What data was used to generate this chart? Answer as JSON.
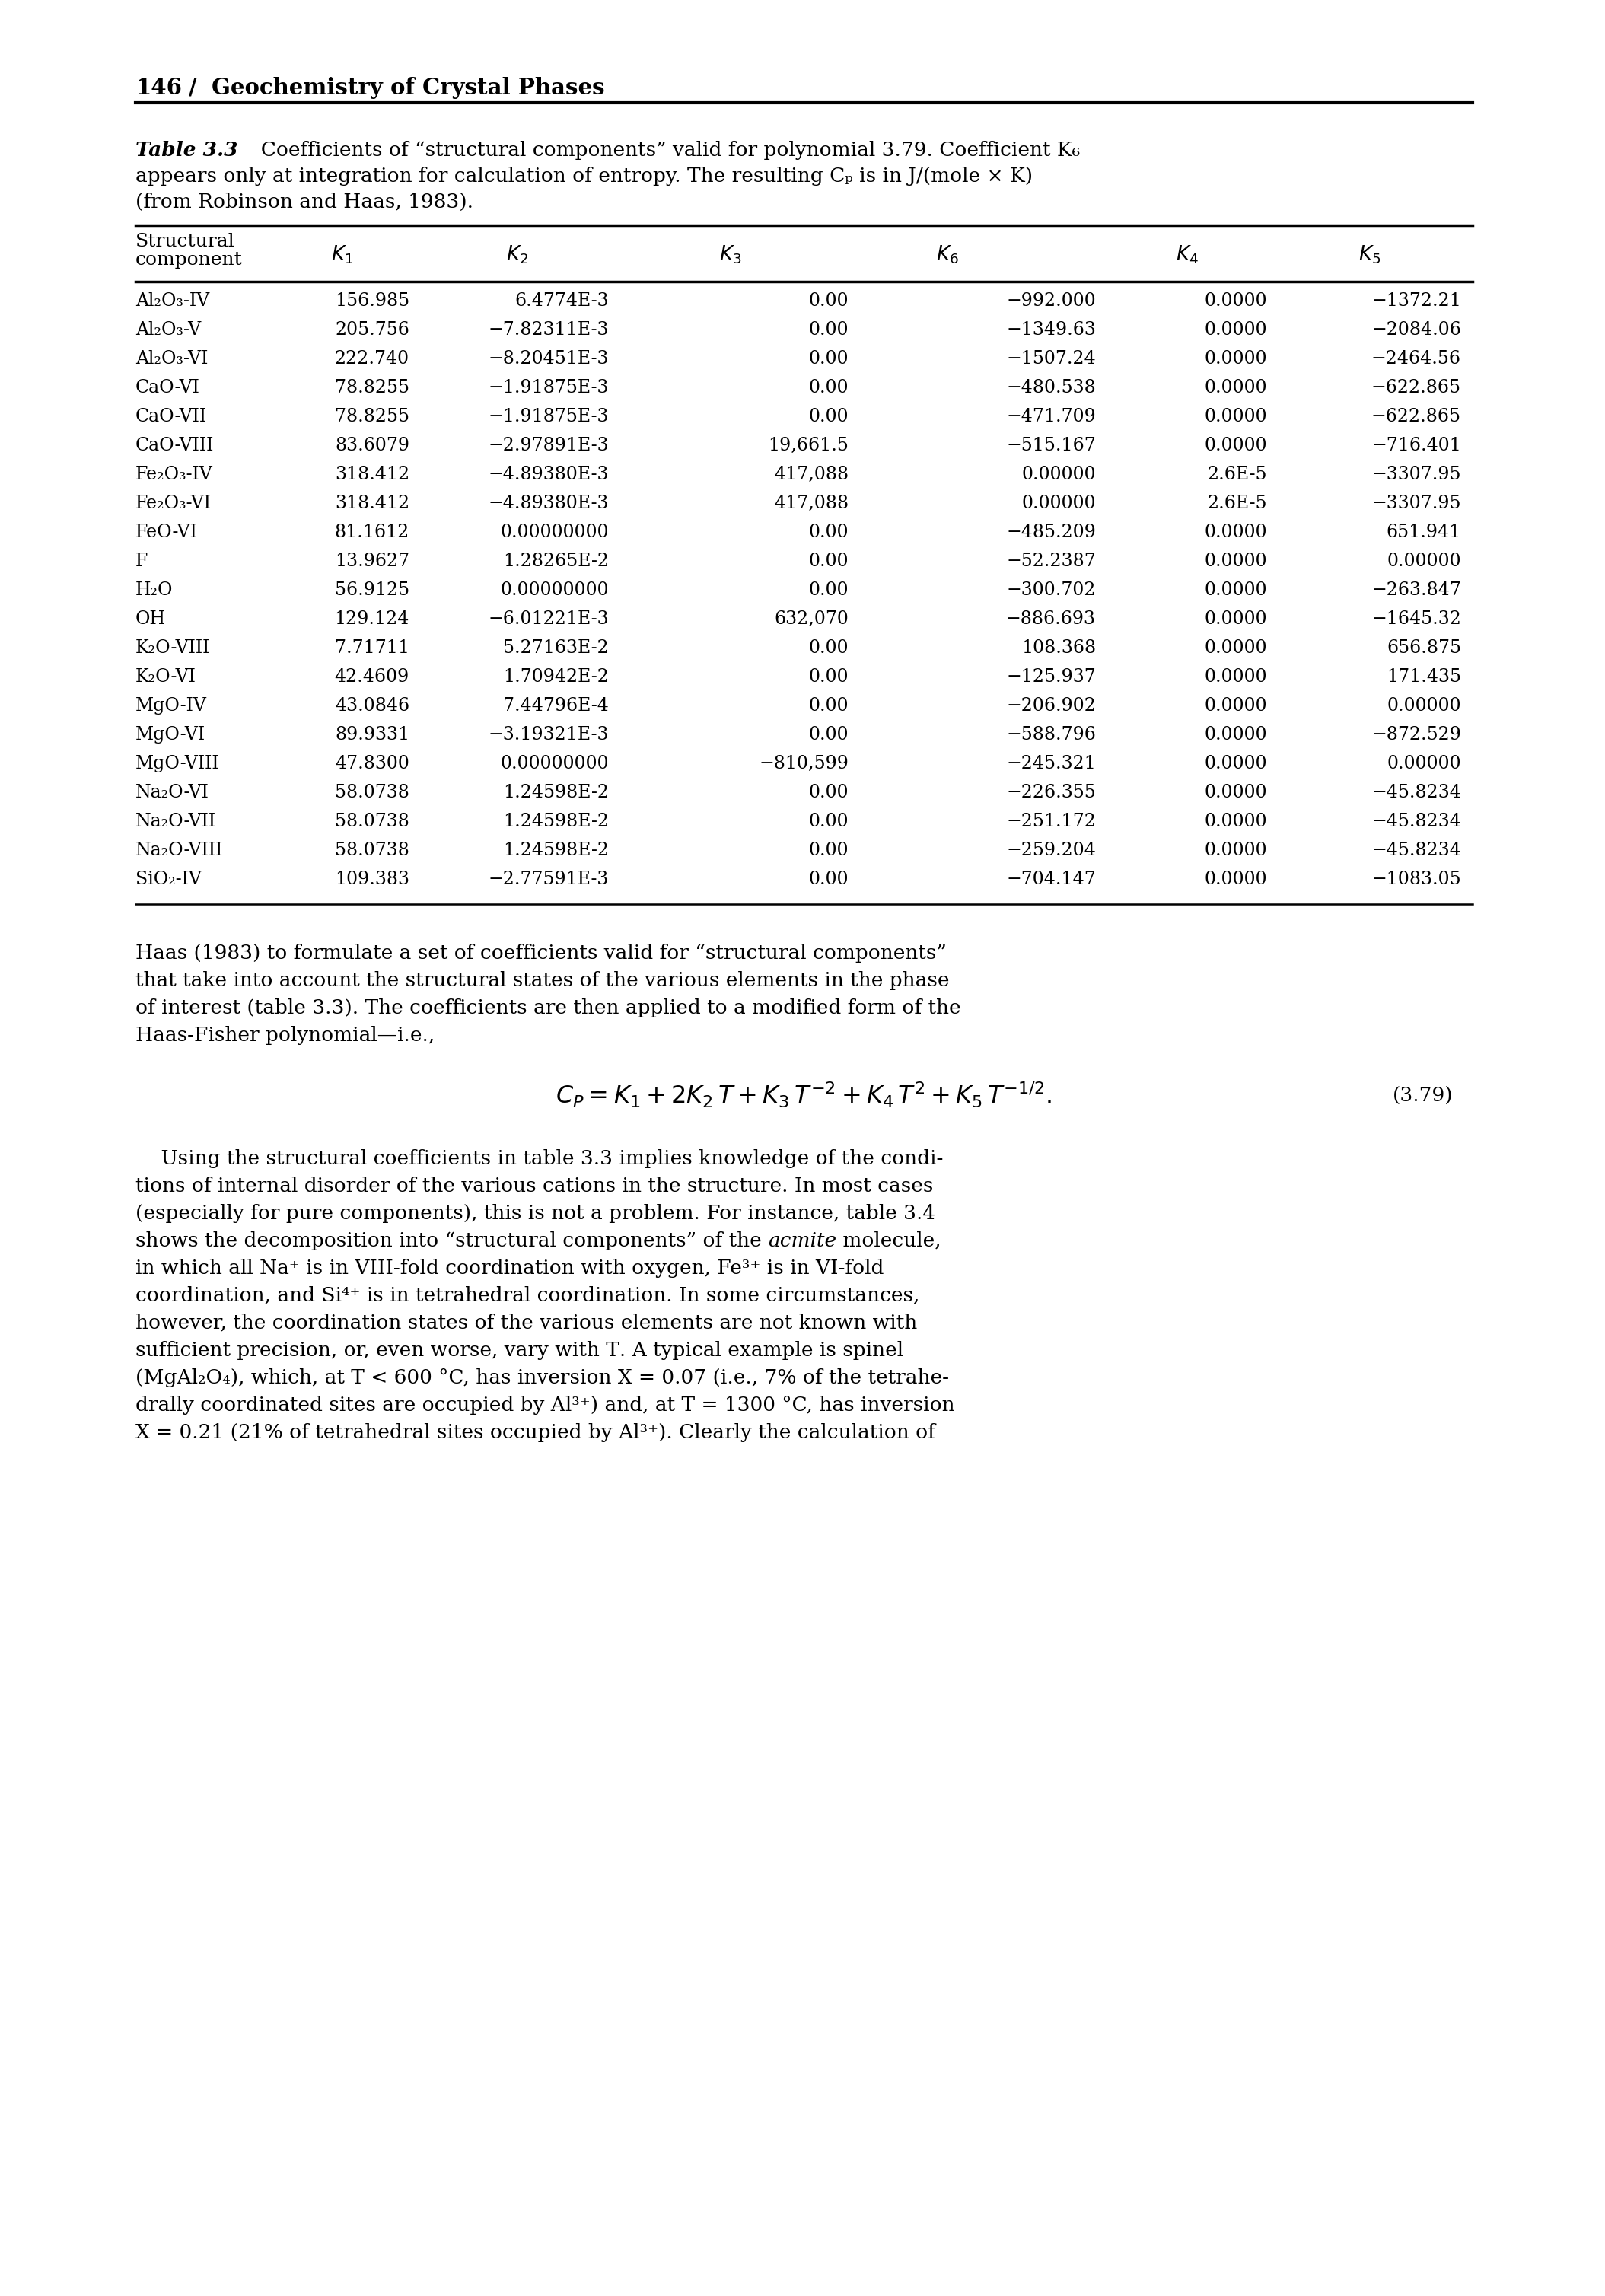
{
  "page_header_num": "146",
  "page_header_title": "Geochemistry of Crystal Phases",
  "table_label": "Table 3.3",
  "col_headers_italic": [
    "K₁",
    "K₂",
    "K₃",
    "K₆",
    "K₄",
    "K₅"
  ],
  "rows": [
    [
      "Al₂O₃-IV",
      "156.985",
      "6.4774E-3",
      "0.00",
      "−992.000",
      "0.0000",
      "−1372.21"
    ],
    [
      "Al₂O₃-V",
      "205.756",
      "−7.82311E-3",
      "0.00",
      "−1349.63",
      "0.0000",
      "−2084.06"
    ],
    [
      "Al₂O₃-VI",
      "222.740",
      "−8.20451E-3",
      "0.00",
      "−1507.24",
      "0.0000",
      "−2464.56"
    ],
    [
      "CaO-VI",
      "78.8255",
      "−1.91875E-3",
      "0.00",
      "−480.538",
      "0.0000",
      "−622.865"
    ],
    [
      "CaO-VII",
      "78.8255",
      "−1.91875E-3",
      "0.00",
      "−471.709",
      "0.0000",
      "−622.865"
    ],
    [
      "CaO-VIII",
      "83.6079",
      "−2.97891E-3",
      "19,661.5",
      "−515.167",
      "0.0000",
      "−716.401"
    ],
    [
      "Fe₂O₃-IV",
      "318.412",
      "−4.89380E-3",
      "417,088",
      "0.00000",
      "2.6E-5",
      "−3307.95"
    ],
    [
      "Fe₂O₃-VI",
      "318.412",
      "−4.89380E-3",
      "417,088",
      "0.00000",
      "2.6E-5",
      "−3307.95"
    ],
    [
      "FeO-VI",
      "81.1612",
      "0.00000000",
      "0.00",
      "−485.209",
      "0.0000",
      "651.941"
    ],
    [
      "F",
      "13.9627",
      "1.28265E-2",
      "0.00",
      "−52.2387",
      "0.0000",
      "0.00000"
    ],
    [
      "H₂O",
      "56.9125",
      "0.00000000",
      "0.00",
      "−300.702",
      "0.0000",
      "−263.847"
    ],
    [
      "OH",
      "129.124",
      "−6.01221E-3",
      "632,070",
      "−886.693",
      "0.0000",
      "−1645.32"
    ],
    [
      "K₂O-VIII",
      "7.71711",
      "5.27163E-2",
      "0.00",
      "108.368",
      "0.0000",
      "656.875"
    ],
    [
      "K₂O-VI",
      "42.4609",
      "1.70942E-2",
      "0.00",
      "−125.937",
      "0.0000",
      "171.435"
    ],
    [
      "MgO-IV",
      "43.0846",
      "7.44796E-4",
      "0.00",
      "−206.902",
      "0.0000",
      "0.00000"
    ],
    [
      "MgO-VI",
      "89.9331",
      "−3.19321E-3",
      "0.00",
      "−588.796",
      "0.0000",
      "−872.529"
    ],
    [
      "MgO-VIII",
      "47.8300",
      "0.00000000",
      "−810,599",
      "−245.321",
      "0.0000",
      "0.00000"
    ],
    [
      "Na₂O-VI",
      "58.0738",
      "1.24598E-2",
      "0.00",
      "−226.355",
      "0.0000",
      "−45.8234"
    ],
    [
      "Na₂O-VII",
      "58.0738",
      "1.24598E-2",
      "0.00",
      "−251.172",
      "0.0000",
      "−45.8234"
    ],
    [
      "Na₂O-VIII",
      "58.0738",
      "1.24598E-2",
      "0.00",
      "−259.204",
      "0.0000",
      "−45.8234"
    ],
    [
      "SiO₂-IV",
      "109.383",
      "−2.77591E-3",
      "0.00",
      "−704.147",
      "0.0000",
      "−1083.05"
    ]
  ],
  "para1_lines": [
    "Haas (1983) to formulate a set of coefficients valid for “structural components”",
    "that take into account the structural states of the various elements in the phase",
    "of interest (table 3.3). The coefficients are then applied to a modified form of the",
    "Haas-Fisher polynomial—i.e.,"
  ],
  "para2_lines": [
    "    Using the structural coefficients in table 3.3 implies knowledge of the condi-",
    "tions of internal disorder of the various cations in the structure. In most cases",
    "(especially for pure components), this is not a problem. For instance, table 3.4",
    "shows the decomposition into “structural components” of the ||acmite|| molecule,",
    "in which all Na⁺ is in VIII-fold coordination with oxygen, Fe³⁺ is in VI-fold",
    "coordination, and Si⁴⁺ is in tetrahedral coordination. In some circumstances,",
    "however, the coordination states of the various elements are not known with",
    "sufficient precision, or, even worse, vary with Τ. A typical example is spinel",
    "(MgAl₂O₄), which, at Τ < 600 °C, has inversion Χ = 0.07 (i.e., 7% of the tetrahe-",
    "drally coordinated sites are occupied by Al³⁺) and, at Τ = 1300 °C, has inversion",
    "Χ = 0.21 (21% of tetrahedral sites occupied by Al³⁺). Clearly the calculation of"
  ],
  "equation_number": "(3.79)"
}
